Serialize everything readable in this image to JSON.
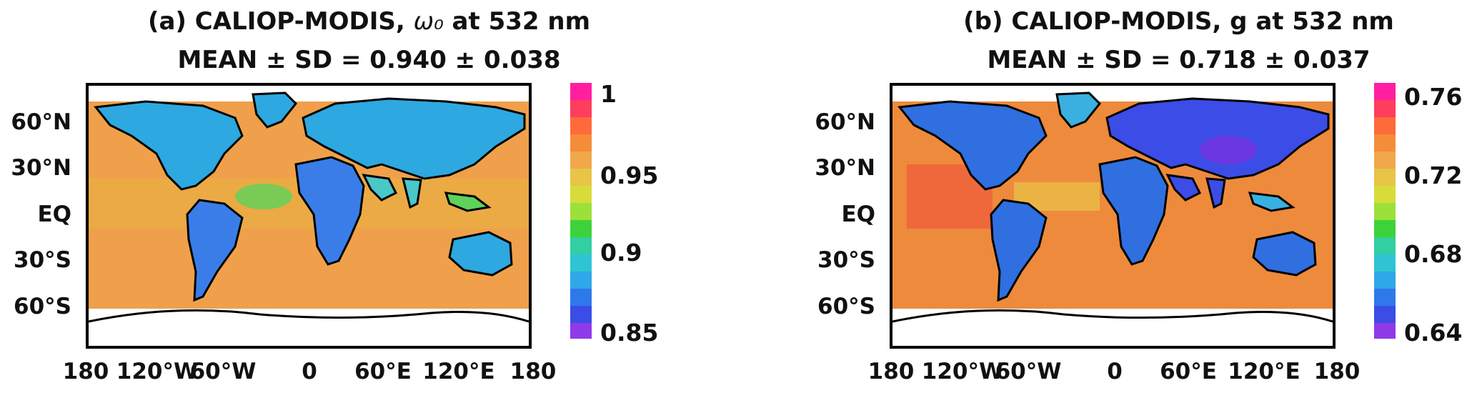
{
  "panels": [
    {
      "title_prefix": "(a) CALIOP-MODIS,",
      "title_symbol": "ω₀",
      "title_suffix": "at 532 nm",
      "stats": "MEAN ± SD = 0.940 ± 0.038",
      "lat_labels": [
        "60°N",
        "30°N",
        "EQ",
        "30°S",
        "60°S"
      ],
      "lon_labels": [
        "180",
        "120°W",
        "60°W",
        "0",
        "60°E",
        "120°E",
        "180"
      ],
      "colorbar": {
        "ticks": [
          "1",
          "0.95",
          "0.9",
          "0.85"
        ]
      },
      "ocean_color": "#f0a04a",
      "land_colors": [
        "#2ea8e0",
        "#3a7de8",
        "#4ac7c9",
        "#5dd35a"
      ]
    },
    {
      "title_prefix": "(b) CALIOP-MODIS,",
      "title_symbol": "g",
      "title_suffix": "at 532 nm",
      "stats": "MEAN ± SD = 0.718 ± 0.037",
      "lat_labels": [
        "60°N",
        "30°N",
        "EQ",
        "30°S",
        "60°S"
      ],
      "lon_labels": [
        "180",
        "120°W",
        "60°W",
        "0",
        "60°E",
        "120°E",
        "180"
      ],
      "colorbar": {
        "ticks": [
          "0.76",
          "0.72",
          "0.68",
          "0.64"
        ]
      },
      "ocean_color": "#ee8a3c",
      "land_colors": [
        "#2f6fe0",
        "#3b4de6",
        "#39b0e0",
        "#6a36e0"
      ]
    }
  ]
}
